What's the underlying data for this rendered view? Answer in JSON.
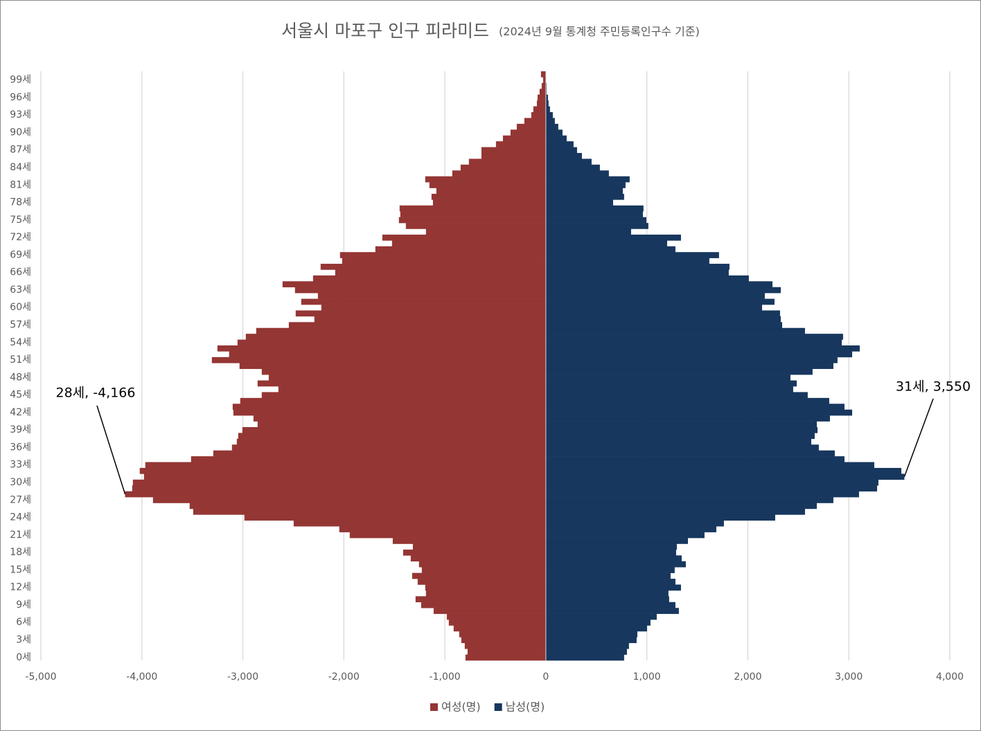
{
  "chart_data": {
    "type": "pyramid",
    "title": "서울시 마포구 인구 피라미드",
    "subtitle": "(2024년 9월 통계청 주민등록인구수 기준)",
    "categories": [
      "0세",
      null,
      null,
      "3세",
      null,
      null,
      "6세",
      null,
      null,
      "9세",
      null,
      null,
      "12세",
      null,
      null,
      "15세",
      null,
      null,
      "18세",
      null,
      null,
      "21세",
      null,
      null,
      "24세",
      null,
      null,
      "27세",
      null,
      null,
      "30세",
      null,
      null,
      "33세",
      null,
      null,
      "36세",
      null,
      null,
      "39세",
      null,
      null,
      "42세",
      null,
      null,
      "45세",
      null,
      null,
      "48세",
      null,
      null,
      "51세",
      null,
      null,
      "54세",
      null,
      null,
      "57세",
      null,
      null,
      "60세",
      null,
      null,
      "63세",
      null,
      null,
      "66세",
      null,
      null,
      "69세",
      null,
      null,
      "72세",
      null,
      null,
      "75세",
      null,
      null,
      "78세",
      null,
      null,
      "81세",
      null,
      null,
      "84세",
      null,
      null,
      "87세",
      null,
      null,
      "90세",
      null,
      null,
      "93세",
      null,
      null,
      "96세",
      null,
      null,
      "99세",
      null
    ],
    "series": [
      {
        "name": "여성(명)",
        "color": "#943634",
        "values": [
          -796,
          -775,
          -803,
          -837,
          -858,
          -913,
          -961,
          -981,
          -1111,
          -1235,
          -1290,
          -1187,
          -1194,
          -1269,
          -1324,
          -1228,
          -1256,
          -1338,
          -1413,
          -1317,
          -1516,
          -1942,
          -2045,
          -2497,
          -2985,
          -3492,
          -3527,
          -3890,
          -4166,
          -4096,
          -4089,
          -3979,
          -4021,
          -3966,
          -3513,
          -3293,
          -3108,
          -3060,
          -3046,
          -3005,
          -2854,
          -2895,
          -3094,
          -3101,
          -3026,
          -2813,
          -2648,
          -2854,
          -2744,
          -2813,
          -3033,
          -3307,
          -3136,
          -3252,
          -3053,
          -2971,
          -2868,
          -2545,
          -2292,
          -2477,
          -2223,
          -2422,
          -2257,
          -2484,
          -2607,
          -2305,
          -2086,
          -2230,
          -2017,
          -2038,
          -1688,
          -1523,
          -1619,
          -1187,
          -1386,
          -1455,
          -1441,
          -1448,
          -1118,
          -1132,
          -1084,
          -1153,
          -1194,
          -926,
          -844,
          -762,
          -638,
          -638,
          -494,
          -425,
          -350,
          -288,
          -213,
          -144,
          -124,
          -89,
          -82,
          -62,
          -41,
          -27,
          -48
        ]
      },
      {
        "name": "남성(명)",
        "color": "#17375e",
        "values": [
          775,
          803,
          823,
          899,
          906,
          1002,
          1036,
          1098,
          1317,
          1283,
          1221,
          1214,
          1338,
          1283,
          1235,
          1276,
          1386,
          1345,
          1290,
          1297,
          1407,
          1571,
          1688,
          1763,
          2271,
          2566,
          2683,
          2847,
          3101,
          3280,
          3293,
          3550,
          3520,
          3252,
          2957,
          2861,
          2703,
          2628,
          2662,
          2690,
          2683,
          2813,
          3033,
          2957,
          2806,
          2593,
          2449,
          2484,
          2422,
          2641,
          2847,
          2888,
          3033,
          3108,
          2930,
          2943,
          2566,
          2340,
          2326,
          2319,
          2141,
          2264,
          2168,
          2326,
          2244,
          2010,
          1811,
          1818,
          1619,
          1715,
          1283,
          1201,
          1338,
          844,
          1015,
          995,
          961,
          967,
          666,
          775,
          762,
          789,
          830,
          624,
          535,
          453,
          357,
          309,
          274,
          206,
          165,
          123,
          89,
          69,
          41,
          27,
          21,
          7,
          7,
          3,
          0
        ]
      }
    ],
    "xlim": [
      -5000,
      4000
    ],
    "xticks": [
      {
        "value": -5000,
        "label": "-5,000"
      },
      {
        "value": -4000,
        "label": "-4,000"
      },
      {
        "value": -3000,
        "label": "-3,000"
      },
      {
        "value": -2000,
        "label": "-2,000"
      },
      {
        "value": -1000,
        "label": "-1,000"
      },
      0,
      {
        "value": 1000,
        "label": "1,000"
      },
      {
        "value": 2000,
        "label": "2,000"
      },
      {
        "value": 3000,
        "label": "3,000"
      },
      {
        "value": 4000,
        "label": "4,000"
      }
    ],
    "grid": true,
    "legend": "bottom",
    "annotations": [
      {
        "text": "28세, -4,166",
        "series": 0,
        "index": 28
      },
      {
        "text": "31세, 3,550",
        "series": 1,
        "index": 31
      }
    ]
  }
}
